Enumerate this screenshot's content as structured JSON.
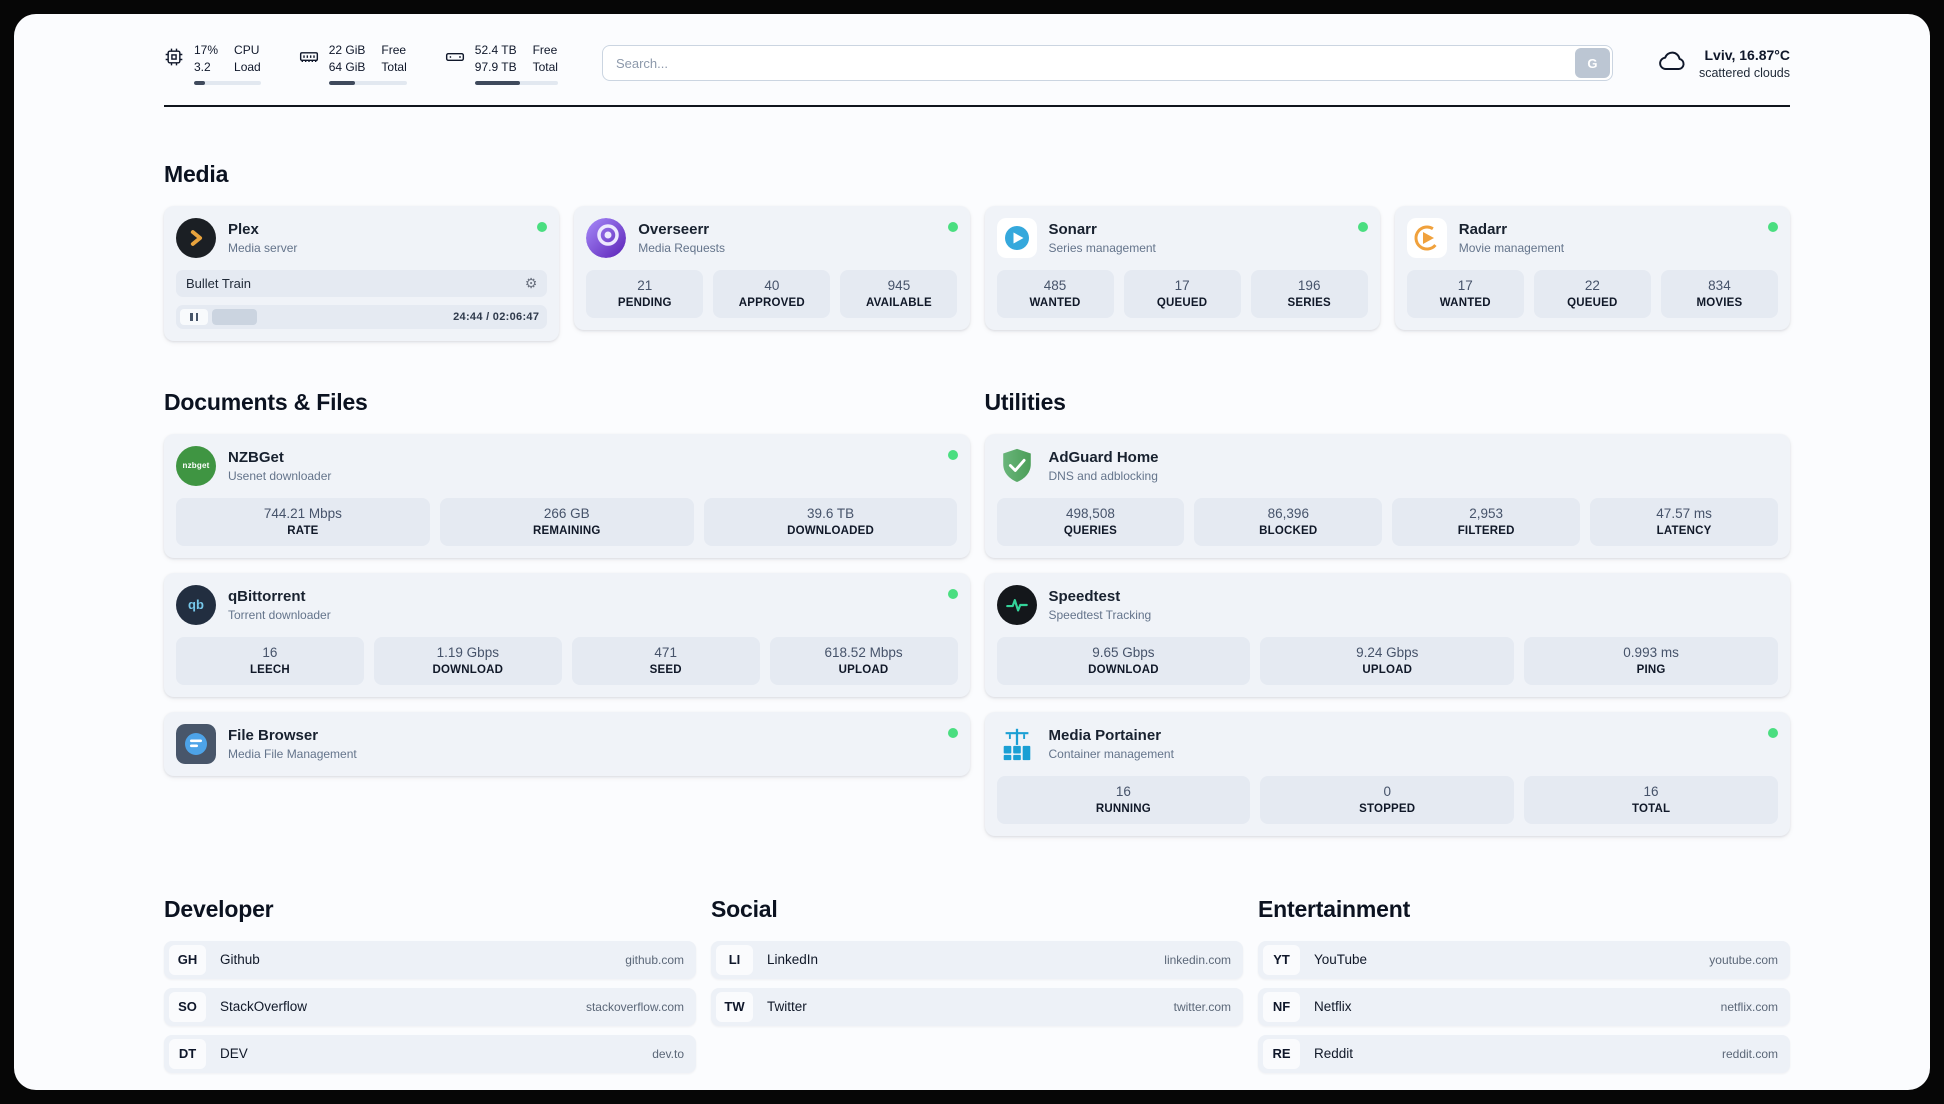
{
  "colors": {
    "status_online": "#4ade80"
  },
  "header": {
    "metrics": [
      {
        "value_top": "17%",
        "value_bottom": "3.2",
        "label_top": "CPU",
        "label_bottom": "Load",
        "progress": 17
      },
      {
        "value_top": "22 GiB",
        "value_bottom": "64 GiB",
        "label_top": "Free",
        "label_bottom": "Total",
        "progress": 34
      },
      {
        "value_top": "52.4 TB",
        "value_bottom": "97.9 TB",
        "label_top": "Free",
        "label_bottom": "Total",
        "progress": 54
      }
    ],
    "search": {
      "placeholder": "Search...",
      "button_label": "G"
    },
    "weather": {
      "location": "Lviv, 16.87°C",
      "condition": "scattered clouds"
    }
  },
  "sections": {
    "media": {
      "title": "Media",
      "apps": [
        {
          "name": "Plex",
          "subtitle": "Media server",
          "now_playing": {
            "title": "Bullet Train",
            "time_display": "24:44 / 02:06:47",
            "progress_pct": 19.5
          }
        },
        {
          "name": "Overseerr",
          "subtitle": "Media Requests",
          "stats": [
            {
              "value": "21",
              "label": "PENDING"
            },
            {
              "value": "40",
              "label": "APPROVED"
            },
            {
              "value": "945",
              "label": "AVAILABLE"
            }
          ]
        },
        {
          "name": "Sonarr",
          "subtitle": "Series management",
          "stats": [
            {
              "value": "485",
              "label": "WANTED"
            },
            {
              "value": "17",
              "label": "QUEUED"
            },
            {
              "value": "196",
              "label": "SERIES"
            }
          ]
        },
        {
          "name": "Radarr",
          "subtitle": "Movie management",
          "stats": [
            {
              "value": "17",
              "label": "WANTED"
            },
            {
              "value": "22",
              "label": "QUEUED"
            },
            {
              "value": "834",
              "label": "MOVIES"
            }
          ]
        }
      ]
    },
    "documents": {
      "title": "Documents & Files",
      "apps": [
        {
          "name": "NZBGet",
          "subtitle": "Usenet downloader",
          "stats": [
            {
              "value": "744.21 Mbps",
              "label": "RATE"
            },
            {
              "value": "266 GB",
              "label": "REMAINING"
            },
            {
              "value": "39.6 TB",
              "label": "DOWNLOADED"
            }
          ]
        },
        {
          "name": "qBittorrent",
          "subtitle": "Torrent downloader",
          "stats": [
            {
              "value": "16",
              "label": "LEECH"
            },
            {
              "value": "1.19 Gbps",
              "label": "DOWNLOAD"
            },
            {
              "value": "471",
              "label": "SEED"
            },
            {
              "value": "618.52 Mbps",
              "label": "UPLOAD"
            }
          ]
        },
        {
          "name": "File Browser",
          "subtitle": "Media File Management"
        }
      ]
    },
    "utilities": {
      "title": "Utilities",
      "apps": [
        {
          "name": "AdGuard Home",
          "subtitle": "DNS and adblocking",
          "stats": [
            {
              "value": "498,508",
              "label": "QUERIES"
            },
            {
              "value": "86,396",
              "label": "BLOCKED"
            },
            {
              "value": "2,953",
              "label": "FILTERED"
            },
            {
              "value": "47.57 ms",
              "label": "LATENCY"
            }
          ]
        },
        {
          "name": "Speedtest",
          "subtitle": "Speedtest Tracking",
          "stats": [
            {
              "value": "9.65 Gbps",
              "label": "DOWNLOAD"
            },
            {
              "value": "9.24 Gbps",
              "label": "UPLOAD"
            },
            {
              "value": "0.993 ms",
              "label": "PING"
            }
          ]
        },
        {
          "name": "Media Portainer",
          "subtitle": "Container management",
          "stats": [
            {
              "value": "16",
              "label": "RUNNING"
            },
            {
              "value": "0",
              "label": "STOPPED"
            },
            {
              "value": "16",
              "label": "TOTAL"
            }
          ]
        }
      ]
    },
    "developer": {
      "title": "Developer",
      "links": [
        {
          "abbr": "GH",
          "name": "Github",
          "domain": "github.com"
        },
        {
          "abbr": "SO",
          "name": "StackOverflow",
          "domain": "stackoverflow.com"
        },
        {
          "abbr": "DT",
          "name": "DEV",
          "domain": "dev.to"
        }
      ]
    },
    "social": {
      "title": "Social",
      "links": [
        {
          "abbr": "LI",
          "name": "LinkedIn",
          "domain": "linkedin.com"
        },
        {
          "abbr": "TW",
          "name": "Twitter",
          "domain": "twitter.com"
        }
      ]
    },
    "entertainment": {
      "title": "Entertainment",
      "links": [
        {
          "abbr": "YT",
          "name": "YouTube",
          "domain": "youtube.com"
        },
        {
          "abbr": "NF",
          "name": "Netflix",
          "domain": "netflix.com"
        },
        {
          "abbr": "RE",
          "name": "Reddit",
          "domain": "reddit.com"
        }
      ]
    }
  }
}
